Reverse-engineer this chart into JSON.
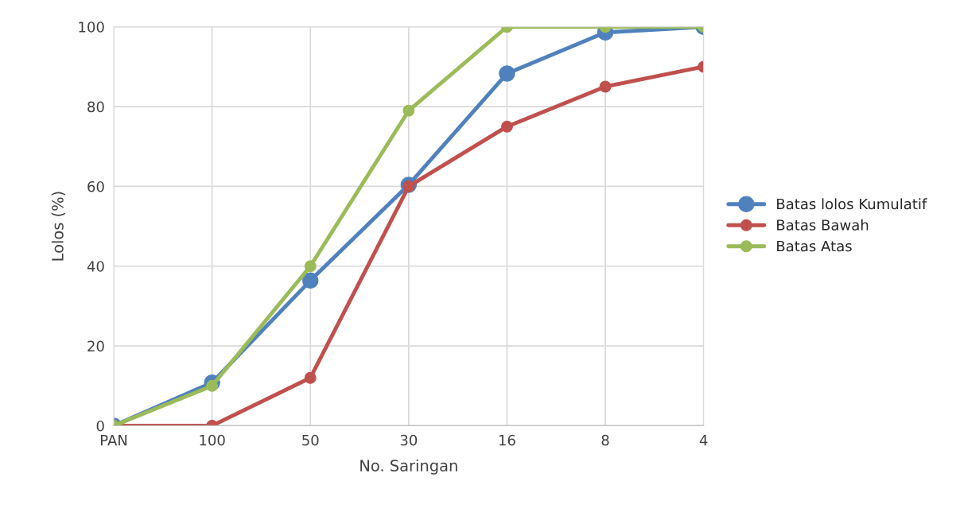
{
  "chart_data": {
    "type": "line",
    "xlabel": "No. Saringan",
    "ylabel": "Lolos (%)",
    "categories": [
      "PAN",
      "100",
      "50",
      "30",
      "16",
      "8",
      "4"
    ],
    "series": [
      {
        "name": "Batas lolos Kumulatif",
        "color": "#4f81bd",
        "values": [
          0,
          10.8,
          36.4,
          60.4,
          88.3,
          98.6,
          100
        ]
      },
      {
        "name": "Batas Bawah",
        "color": "#c0504d",
        "values": [
          0,
          0,
          12,
          60,
          75,
          85,
          90
        ]
      },
      {
        "name": "Batas Atas",
        "color": "#9bbb59",
        "values": [
          0,
          10,
          40,
          79,
          100,
          100,
          100
        ]
      }
    ],
    "ylim": [
      0,
      100
    ],
    "yticks": [
      0,
      20,
      40,
      60,
      80,
      100
    ],
    "grid": true,
    "legend": "right",
    "marker": "circle",
    "line_style": "solid"
  }
}
